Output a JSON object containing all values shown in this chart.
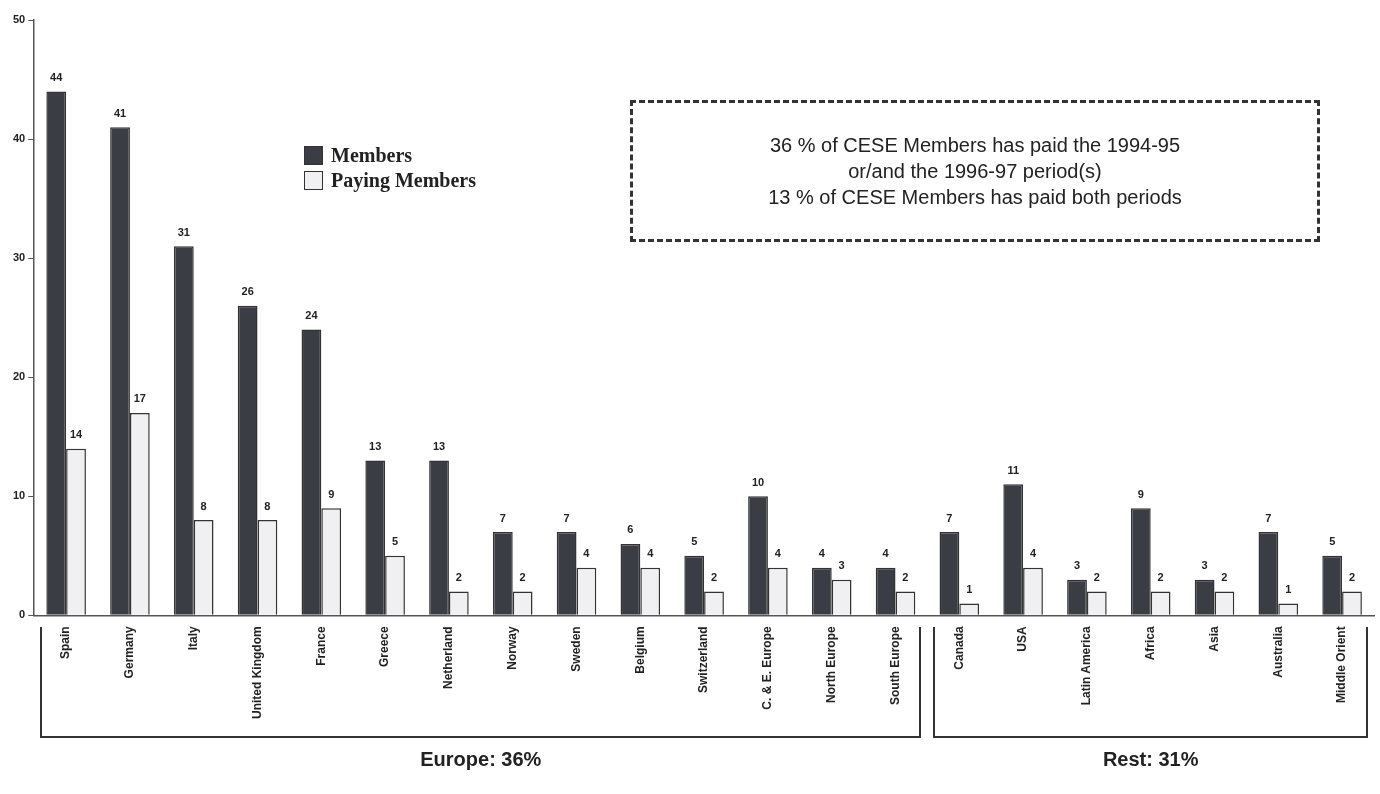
{
  "chart_data": {
    "type": "bar",
    "categories": [
      "Spain",
      "Germany",
      "Italy",
      "United Kingdom",
      "France",
      "Greece",
      "Netherland",
      "Norway",
      "Sweden",
      "Belgium",
      "Switzerland",
      "C. & E. Europe",
      "North Europe",
      "South Europe",
      "Canada",
      "USA",
      "Latin America",
      "Africa",
      "Asia",
      "Australia",
      "Middle Orient"
    ],
    "series": [
      {
        "name": "Members",
        "color": "#3a3d44",
        "values": [
          44,
          41,
          31,
          26,
          24,
          13,
          13,
          7,
          7,
          6,
          5,
          10,
          4,
          4,
          7,
          11,
          3,
          9,
          3,
          7,
          5
        ]
      },
      {
        "name": "Paying Members",
        "color": "#f0f0f2",
        "values": [
          14,
          17,
          8,
          8,
          9,
          5,
          2,
          2,
          4,
          4,
          2,
          4,
          3,
          2,
          1,
          4,
          2,
          2,
          2,
          1,
          2
        ]
      }
    ],
    "ylim": [
      0,
      50
    ],
    "yticks": [
      0,
      10,
      20,
      30,
      40,
      50
    ],
    "grid": false,
    "legend": "top",
    "data_labels": true,
    "annotations": [
      "36 % of CESE Members has paid the 1994-95 or/and the 1996-97 period(s)",
      "13 % of CESE Members has paid both periods",
      "Europe: 36%",
      "Rest: 31%"
    ]
  }
}
